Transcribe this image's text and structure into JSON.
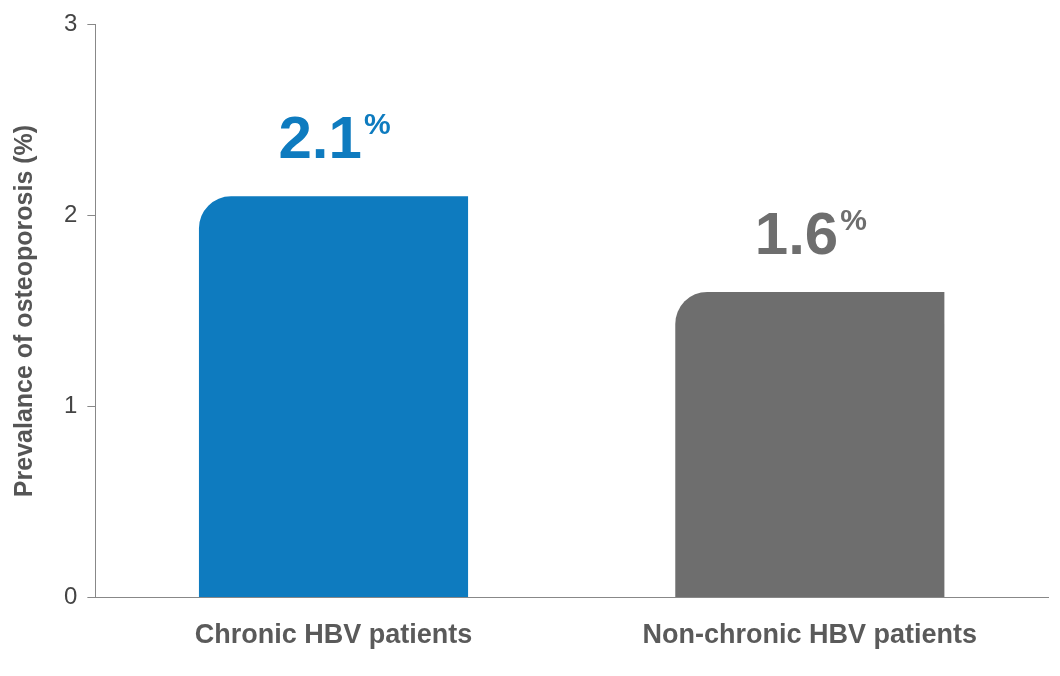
{
  "chart_data": {
    "type": "bar",
    "ylabel": "Prevalance of osteoporosis (%)",
    "categories": [
      "Chronic HBV patients",
      "Non-chronic HBV patients"
    ],
    "values": [
      2.1,
      1.6
    ],
    "value_labels": [
      "2.1%",
      "1.6%"
    ],
    "colors": [
      "#0e7bbf",
      "#6e6e6e"
    ],
    "ylim": [
      0,
      3
    ],
    "yticks": [
      0,
      1,
      2,
      3
    ],
    "grid": false,
    "data_labels": true
  }
}
